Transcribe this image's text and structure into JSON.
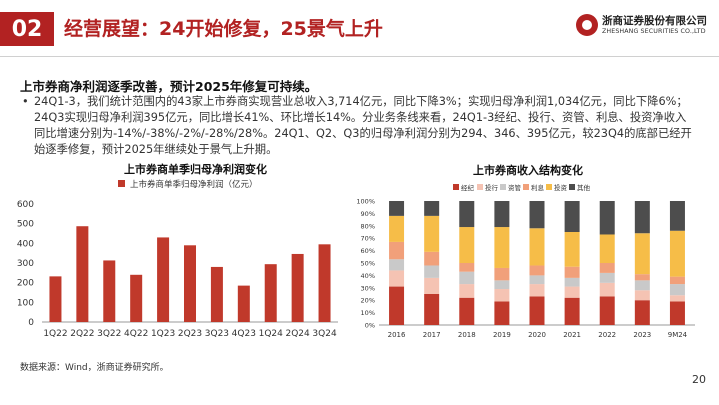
{
  "header": {
    "section_number": "02",
    "title": "经营展望：24开始修复，25景气上升",
    "logo_name": "浙商证券股份有限公司",
    "logo_english": "ZHESHANG SECURITIES CO.,LTD"
  },
  "body": {
    "heading": "上市券商净利润逐季改善，预计2025年修复可持续。",
    "bullet_mark": "•",
    "bullet_text": "24Q1-3，我们统计范围内的43家上市券商实现营业总收入3,714亿元，同比下降3%；实现归母净利润1,034亿元，同比下降6%；24Q3实现归母净利润395亿元，同比增长41%、环比增长14%。分业务条线来看，24Q1-3经纪、投行、资管、利息、投资净收入同比增速分别为-14%/-38%/-2%/-28%/28%。24Q1、Q2、Q3的归母净利润分别为294、346、395亿元，较23Q4的底部已经开始逐季修复，预计2025年继续处于景气上升期。"
  },
  "footer": {
    "source": "数据来源：Wind，浙商证券研究所。",
    "page_number": "20"
  },
  "chart_data": [
    {
      "type": "bar",
      "title": "上市券商单季归母净利润变化",
      "legend": "top-left",
      "categories": [
        "1Q22",
        "2Q22",
        "3Q22",
        "4Q22",
        "1Q23",
        "2Q23",
        "3Q23",
        "4Q23",
        "1Q24",
        "2Q24",
        "3Q24"
      ],
      "series": [
        {
          "name": "上市券商单季归母净利润（亿元）",
          "values": [
            232,
            487,
            313,
            240,
            430,
            390,
            280,
            185,
            294,
            346,
            395
          ]
        }
      ],
      "ylim": [
        0,
        600
      ],
      "yticks": [
        0,
        100,
        200,
        300,
        400,
        500,
        600
      ],
      "grid": false,
      "colors": {
        "bar": "#c0392b"
      }
    },
    {
      "type": "bar",
      "stacked": true,
      "normalized": true,
      "title": "上市券商收入结构变化",
      "legend": "top",
      "categories": [
        "2016",
        "2017",
        "2018",
        "2019",
        "2020",
        "2021",
        "2022",
        "2023",
        "9M24"
      ],
      "series": [
        {
          "name": "经纪",
          "color": "#c0392b",
          "values": [
            31,
            25,
            22,
            19,
            23,
            22,
            23,
            20,
            19
          ]
        },
        {
          "name": "投行",
          "color": "#f5c3b3",
          "values": [
            13,
            13,
            11,
            10,
            10,
            9,
            11,
            8,
            5
          ]
        },
        {
          "name": "资管",
          "color": "#c9c9c9",
          "values": [
            9,
            10,
            10,
            7,
            7,
            7,
            8,
            8,
            9
          ]
        },
        {
          "name": "利息",
          "color": "#f1a07a",
          "values": [
            14,
            11,
            7,
            10,
            8,
            9,
            8,
            5,
            6
          ]
        },
        {
          "name": "投资",
          "color": "#f6bd48",
          "values": [
            21,
            29,
            29,
            33,
            30,
            28,
            23,
            33,
            37
          ]
        },
        {
          "name": "其他",
          "color": "#4d4d4d",
          "values": [
            12,
            12,
            21,
            21,
            22,
            25,
            27,
            26,
            24
          ]
        }
      ],
      "ylim": [
        0,
        100
      ],
      "yticks": [
        "0%",
        "10%",
        "20%",
        "30%",
        "40%",
        "50%",
        "60%",
        "70%",
        "80%",
        "90%",
        "100%"
      ],
      "grid": false
    }
  ]
}
